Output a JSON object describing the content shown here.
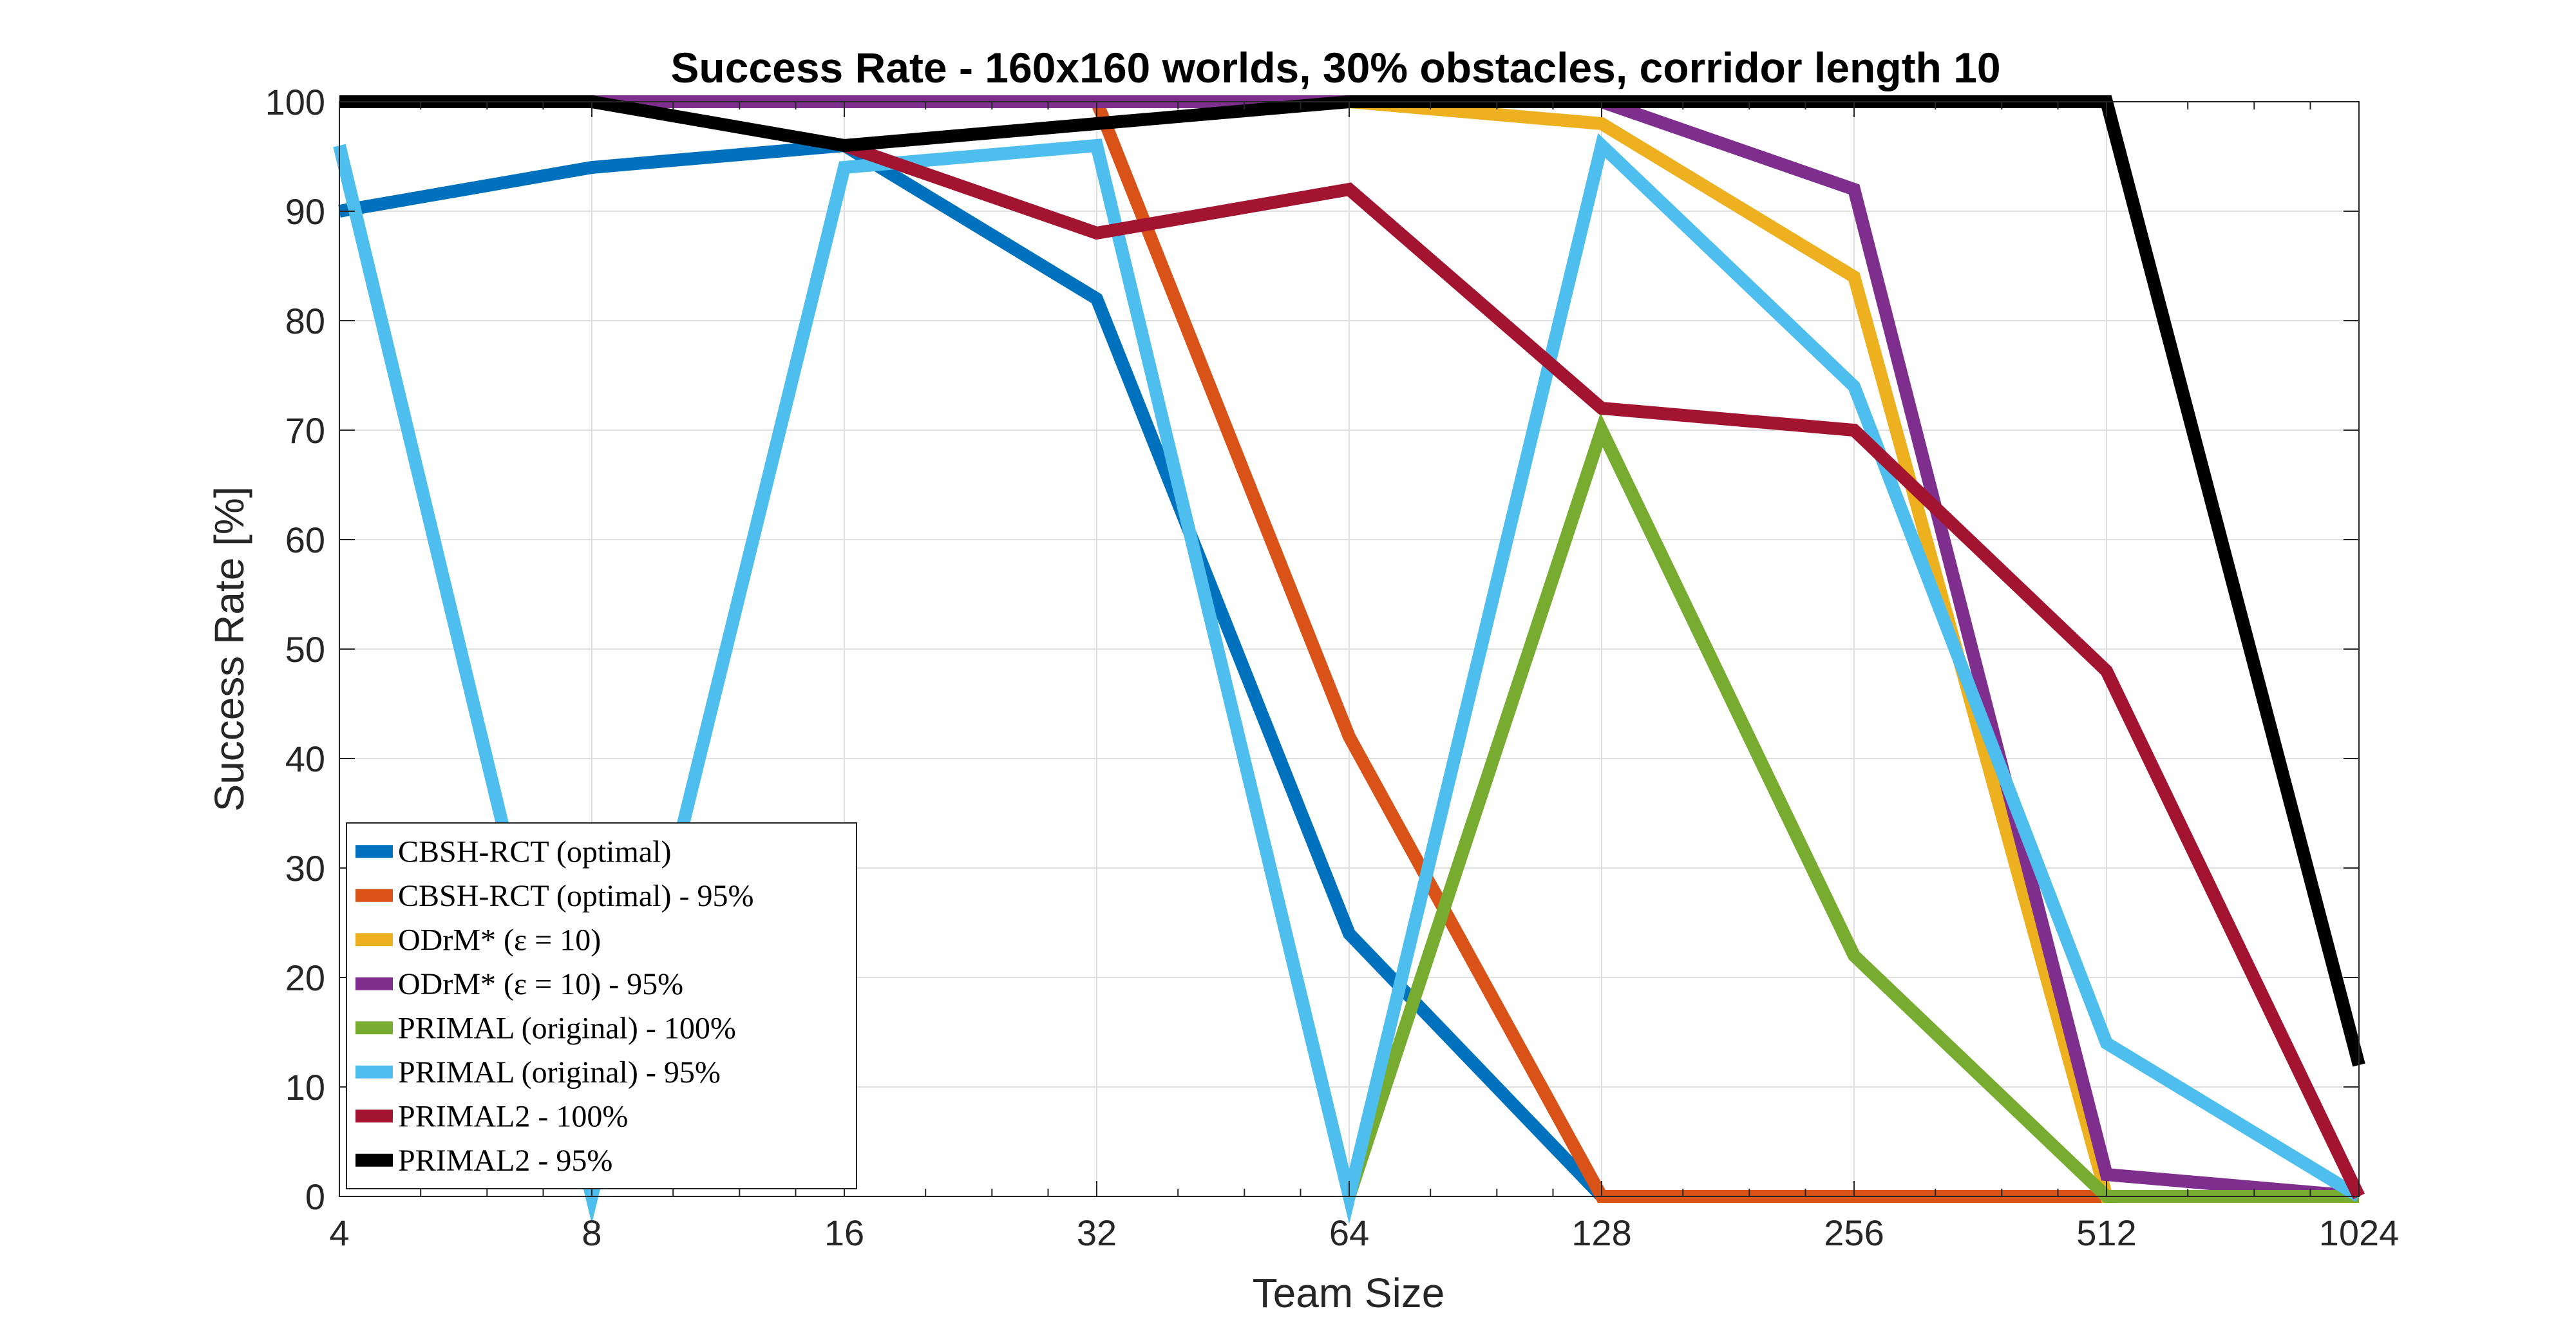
{
  "chart_data": {
    "type": "line",
    "title": "Success Rate - 160x160 worlds, 30% obstacles, corridor length 10",
    "xlabel": "Team Size",
    "ylabel": "Success Rate [%]",
    "xscale": "log2",
    "x": [
      4,
      8,
      16,
      32,
      64,
      128,
      256,
      512,
      1024
    ],
    "xtick_labels": [
      "4",
      "8",
      "16",
      "32",
      "64",
      "128",
      "256",
      "512",
      "1024"
    ],
    "ylim": [
      0,
      100
    ],
    "yticks": [
      0,
      10,
      20,
      30,
      40,
      50,
      60,
      70,
      80,
      90,
      100
    ],
    "grid": true,
    "legend_position": "bottom-left",
    "series": [
      {
        "name": "CBSH-RCT (optimal)",
        "color": "#0072BD",
        "values": [
          90,
          94,
          96,
          82,
          24,
          0,
          0,
          0,
          0
        ]
      },
      {
        "name": "CBSH-RCT (optimal) - 95%",
        "color": "#D95319",
        "values": [
          100,
          100,
          100,
          100,
          42,
          0,
          0,
          0,
          0
        ]
      },
      {
        "name": "ODrM* (ε = 10)",
        "color": "#EDB120",
        "values": [
          100,
          100,
          100,
          100,
          100,
          98,
          84,
          0,
          0
        ]
      },
      {
        "name": "ODrM* (ε = 10) - 95%",
        "color": "#7E2F8E",
        "values": [
          100,
          100,
          100,
          100,
          100,
          100,
          92,
          2,
          0
        ]
      },
      {
        "name": "PRIMAL (original) - 100%",
        "color": "#77AC30",
        "values": [
          null,
          null,
          null,
          null,
          0,
          70,
          22,
          0,
          0
        ]
      },
      {
        "name": "PRIMAL (original) - 95%",
        "color": "#4DBEEE",
        "values": [
          96,
          0,
          94,
          96,
          0,
          96,
          74,
          14,
          0
        ]
      },
      {
        "name": "PRIMAL2 - 100%",
        "color": "#A2142F",
        "values": [
          null,
          null,
          96,
          88,
          92,
          72,
          70,
          48,
          0
        ]
      },
      {
        "name": "PRIMAL2 - 95%",
        "color": "#000000",
        "values": [
          100,
          100,
          96,
          98,
          100,
          100,
          100,
          100,
          12
        ]
      }
    ]
  }
}
